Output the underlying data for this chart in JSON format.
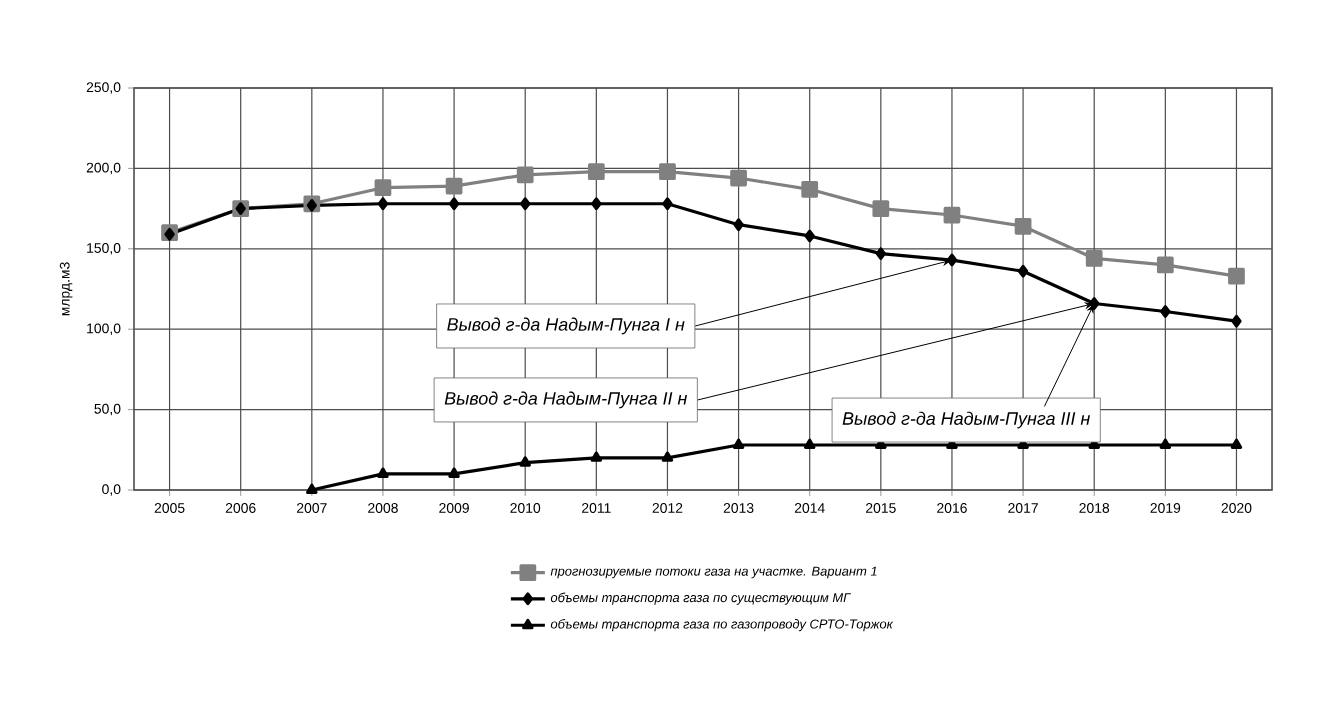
{
  "chart_data": {
    "type": "line",
    "ylabel": "млрд.м3",
    "categories": [
      "2005",
      "2006",
      "2007",
      "2008",
      "2009",
      "2010",
      "2011",
      "2012",
      "2013",
      "2014",
      "2015",
      "2016",
      "2017",
      "2018",
      "2019",
      "2020"
    ],
    "series": [
      {
        "name": "прогнозируемые потоки газа на участке. Вариант 1",
        "color": "#808080",
        "marker": "square",
        "values": [
          160,
          175,
          178,
          188,
          189,
          196,
          198,
          198,
          194,
          187,
          175,
          171,
          164,
          144,
          140,
          133
        ]
      },
      {
        "name": "объемы транспорта газа по существующим МГ",
        "color": "#000000",
        "marker": "diamond",
        "values": [
          159,
          175,
          177,
          178,
          178,
          178,
          178,
          178,
          165,
          158,
          147,
          143,
          136,
          116,
          111,
          105
        ]
      },
      {
        "name": "объемы транспорта газа по газопроводу СРТО-Торжок",
        "color": "#000000",
        "marker": "triangle",
        "values": [
          null,
          null,
          0,
          10,
          10,
          17,
          20,
          20,
          28,
          28,
          28,
          28,
          28,
          28,
          28,
          28
        ]
      }
    ],
    "ylim": [
      0,
      250
    ],
    "yticks": [
      {
        "value": 0,
        "label": "0,0"
      },
      {
        "value": 50,
        "label": "50,0"
      },
      {
        "value": 100,
        "label": "100,0"
      },
      {
        "value": 150,
        "label": "150,0"
      },
      {
        "value": 200,
        "label": "200,0"
      },
      {
        "value": 250,
        "label": "250,0"
      }
    ],
    "grid": true,
    "legend": "bottom",
    "annotations": [
      {
        "text": "Вывод г-да Надым-Пунга I н",
        "x": "2016",
        "y": 143
      },
      {
        "text": "Вывод г-да Надым-Пунга II н",
        "x": "2018",
        "y": 116
      },
      {
        "text": "Вывод г-да Надым-Пунга III н",
        "x": "2018",
        "y": 116
      }
    ]
  }
}
